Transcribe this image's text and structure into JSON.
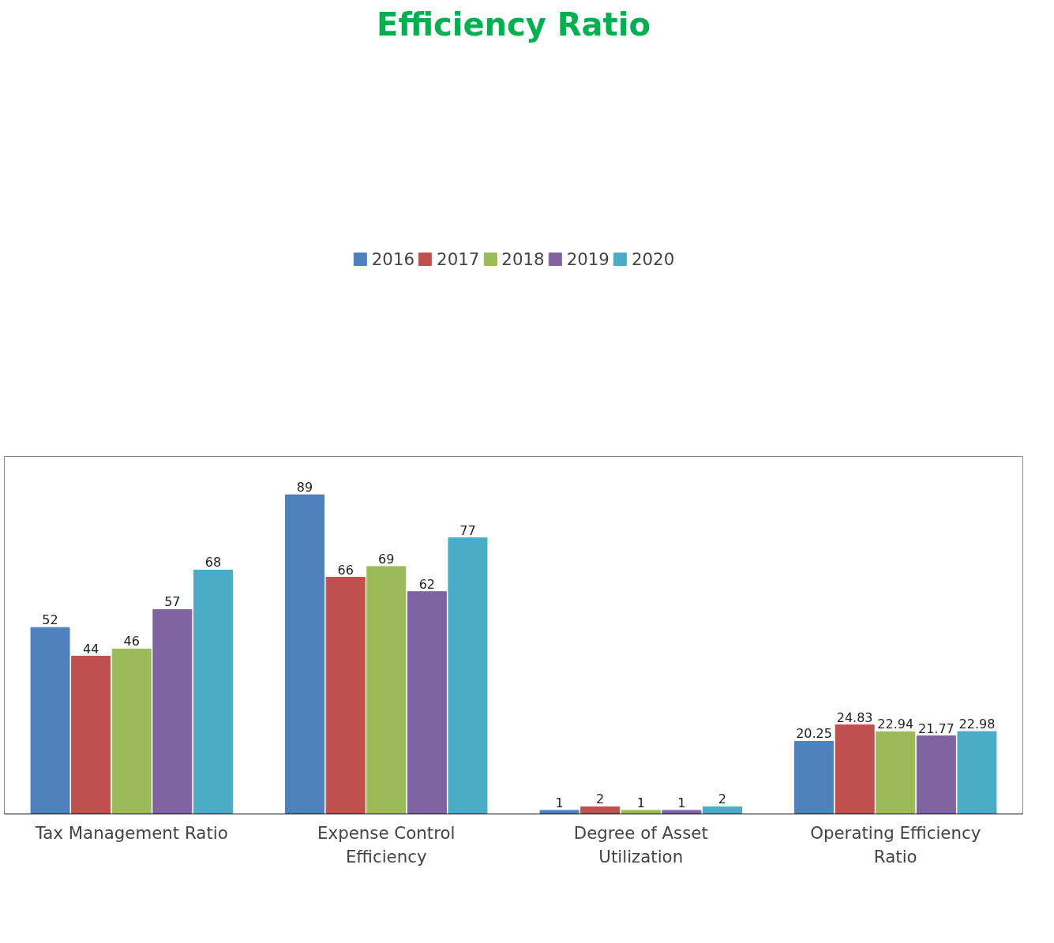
{
  "chart_data": {
    "type": "bar",
    "title": "Efficiency Ratio",
    "categories": [
      "Tax Management Ratio",
      "Expense Control Efficiency",
      "Degree of Asset Utilization",
      "Operating Efficiency Ratio"
    ],
    "series": [
      {
        "name": "2016",
        "color": "#4f81bd",
        "values": [
          52,
          89,
          1,
          20.25
        ]
      },
      {
        "name": "2017",
        "color": "#c0504d",
        "values": [
          44,
          66,
          2,
          24.83
        ]
      },
      {
        "name": "2018",
        "color": "#9bbb59",
        "values": [
          46,
          69,
          1,
          22.94
        ]
      },
      {
        "name": "2019",
        "color": "#8064a2",
        "values": [
          57,
          62,
          1,
          21.77
        ]
      },
      {
        "name": "2020",
        "color": "#4bacc6",
        "values": [
          68,
          77,
          2,
          22.98
        ]
      }
    ],
    "data_labels": true,
    "legend": "top",
    "grid": false
  }
}
